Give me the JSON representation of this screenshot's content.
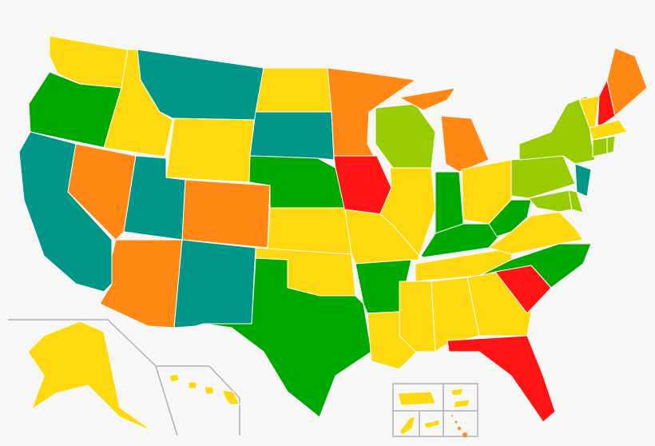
{
  "palette": {
    "yellow": "#FFD90F",
    "teal": "#00968A",
    "green": "#00A800",
    "lightgreen": "#99CC00",
    "orange": "#FF8814",
    "red": "#FF1414"
  },
  "states": {
    "WA": "yellow",
    "OR": "green",
    "CA": "teal",
    "NV": "orange",
    "ID": "yellow",
    "MT": "teal",
    "WY": "yellow",
    "UT": "teal",
    "AZ": "orange",
    "CO": "orange",
    "NM": "teal",
    "ND": "yellow",
    "SD": "teal",
    "NE": "green",
    "KS": "yellow",
    "OK": "yellow",
    "TX": "green",
    "MN": "orange",
    "IA": "red",
    "MO": "yellow",
    "AR": "green",
    "LA": "yellow",
    "WI": "lightgreen",
    "IL": "yellow",
    "MI": "orange",
    "IN": "green",
    "OH": "yellow",
    "KY": "green",
    "TN": "yellow",
    "MS": "yellow",
    "AL": "yellow",
    "GA": "yellow",
    "FL": "red",
    "SC": "red",
    "NC": "green",
    "VA": "yellow",
    "WV": "green",
    "PA": "lightgreen",
    "NY": "lightgreen",
    "NJ": "teal",
    "MD": "lightgreen",
    "DE": "lightgreen",
    "CT": "lightgreen",
    "RI": "lightgreen",
    "MA": "yellow",
    "VT": "yellow",
    "NH": "red",
    "ME": "orange",
    "AK": "yellow",
    "HI": "yellow",
    "PR": "yellow",
    "VI": "yellow",
    "GU": "yellow",
    "MP": "yellow",
    "AS": "orange"
  }
}
